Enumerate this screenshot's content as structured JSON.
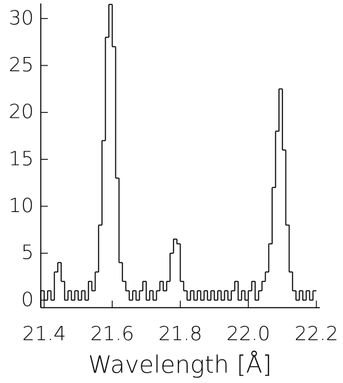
{
  "chart_data": {
    "type": "histogram",
    "x_label": "Wavelength [Å]",
    "bins": [
      21.39,
      21.4,
      21.41,
      21.42,
      21.43,
      21.44,
      21.45,
      21.46,
      21.47,
      21.48,
      21.49,
      21.5,
      21.51,
      21.52,
      21.53,
      21.54,
      21.55,
      21.56,
      21.57,
      21.58,
      21.59,
      21.6,
      21.61,
      21.62,
      21.63,
      21.64,
      21.65,
      21.66,
      21.67,
      21.68,
      21.69,
      21.7,
      21.71,
      21.72,
      21.73,
      21.74,
      21.75,
      21.76,
      21.77,
      21.78,
      21.79,
      21.8,
      21.81,
      21.82,
      21.83,
      21.84,
      21.85,
      21.86,
      21.87,
      21.88,
      21.89,
      21.9,
      21.91,
      21.92,
      21.93,
      21.94,
      21.95,
      21.96,
      21.97,
      21.98,
      21.99,
      22.0,
      22.01,
      22.02,
      22.03,
      22.04,
      22.05,
      22.06,
      22.07,
      22.08,
      22.09,
      22.1,
      22.11,
      22.12,
      22.13,
      22.14,
      22.15,
      22.16,
      22.17,
      22.18,
      22.19,
      22.2
    ],
    "values": [
      1,
      0,
      1,
      0,
      3,
      4,
      2,
      0,
      1,
      0,
      1,
      0,
      1,
      0,
      2,
      1,
      3,
      8,
      17,
      28,
      31.5,
      27,
      13,
      4,
      2,
      1,
      0,
      1,
      0,
      1,
      2,
      0,
      1,
      0,
      1,
      2,
      1,
      2,
      5,
      6.5,
      6,
      2,
      1,
      0,
      1,
      0,
      1,
      0,
      1,
      0,
      1,
      0,
      1,
      0,
      1,
      0,
      1,
      2,
      0,
      1,
      0,
      1,
      2,
      0,
      1,
      2,
      3,
      6,
      12,
      18,
      22.5,
      16,
      8,
      3,
      1,
      0,
      1,
      0,
      1,
      0,
      1
    ],
    "color": "#000000",
    "xlim": [
      21.39,
      22.21
    ],
    "ylim": [
      -0.8,
      31.6
    ],
    "xticks": [
      21.4,
      21.6,
      21.8,
      {
        "value": 22.0,
        "label": "22.0"
      },
      22.2
    ],
    "yticks": [
      0,
      5,
      10,
      15,
      20,
      25,
      30
    ]
  }
}
